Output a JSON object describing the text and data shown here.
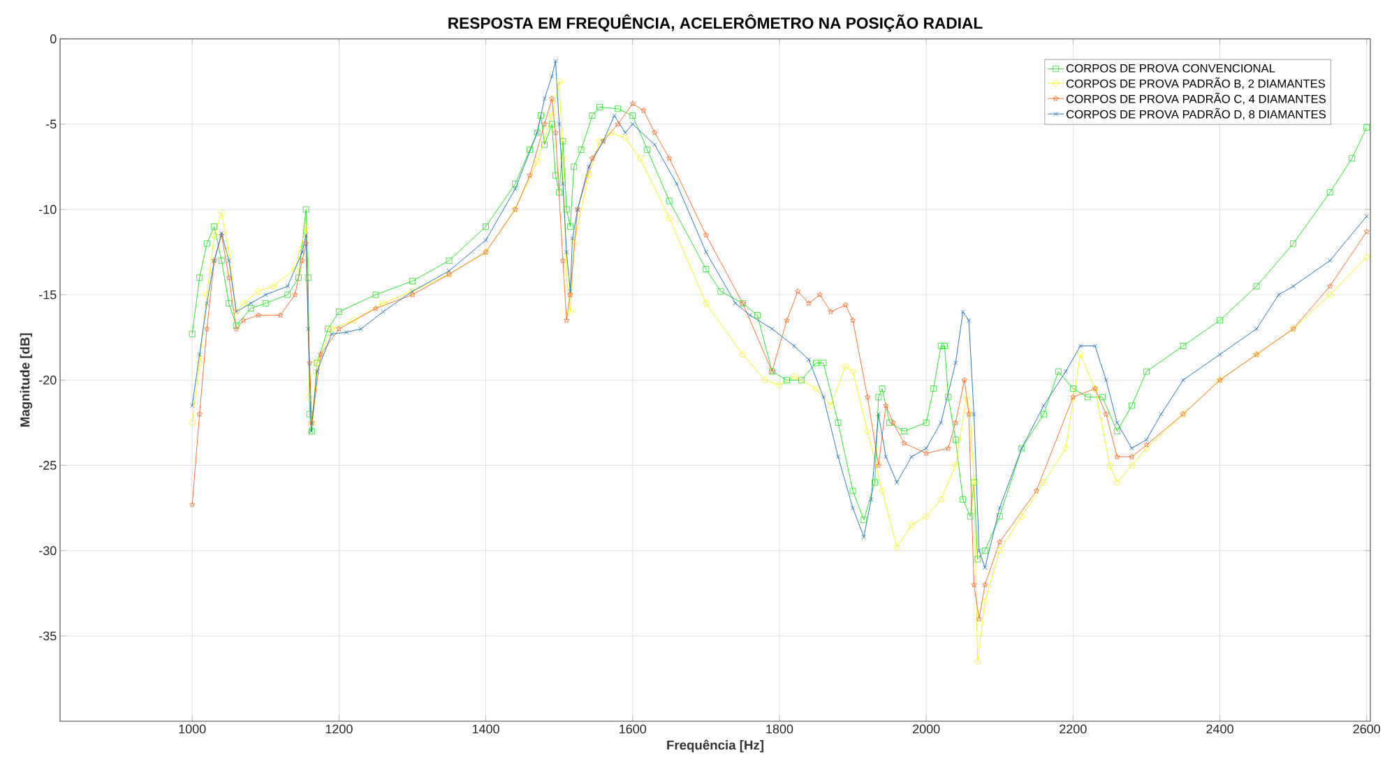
{
  "chart_data": {
    "type": "line",
    "title": "RESPOSTA EM FREQUÊNCIA, ACELERÔMETRO NA POSIÇÃO RADIAL",
    "xlabel": "Frequência [Hz]",
    "ylabel": "Magnitude [dB]",
    "xlim": [
      820,
      2605
    ],
    "ylim": [
      -40,
      0
    ],
    "xticks": [
      1000,
      1200,
      1400,
      1600,
      1800,
      2000,
      2200,
      2400,
      2600
    ],
    "yticks": [
      0,
      -5,
      -10,
      -15,
      -20,
      -25,
      -30,
      -35
    ],
    "grid": true,
    "legend": "top right",
    "line_style": "solid",
    "series": [
      {
        "name": "CORPOS DE PROVA CONVENCIONAL",
        "color": "#22dd22",
        "marker": "square",
        "x": [
          1000,
          1010,
          1020,
          1030,
          1040,
          1050,
          1060,
          1080,
          1100,
          1130,
          1145,
          1155,
          1158,
          1160,
          1163,
          1170,
          1185,
          1200,
          1250,
          1300,
          1350,
          1400,
          1440,
          1460,
          1470,
          1475,
          1480,
          1490,
          1495,
          1500,
          1505,
          1510,
          1515,
          1520,
          1530,
          1545,
          1555,
          1580,
          1600,
          1620,
          1650,
          1700,
          1720,
          1750,
          1770,
          1790,
          1810,
          1830,
          1850,
          1860,
          1880,
          1900,
          1915,
          1930,
          1935,
          1940,
          1950,
          1970,
          2000,
          2010,
          2020,
          2025,
          2030,
          2040,
          2050,
          2060,
          2065,
          2070,
          2080,
          2100,
          2130,
          2160,
          2180,
          2200,
          2220,
          2240,
          2260,
          2280,
          2300,
          2350,
          2400,
          2450,
          2500,
          2550,
          2580,
          2600
        ],
        "values": [
          -17.3,
          -14,
          -12,
          -11,
          -13,
          -15.5,
          -16.8,
          -15.8,
          -15.5,
          -15,
          -14,
          -10,
          -14,
          -22,
          -23,
          -19,
          -17,
          -16,
          -15,
          -14.2,
          -13,
          -11,
          -8.5,
          -6.5,
          -5.5,
          -4.5,
          -6.2,
          -5,
          -8,
          -9,
          -6,
          -10,
          -11,
          -7.5,
          -6.5,
          -4.5,
          -4,
          -4.1,
          -4.5,
          -6.5,
          -9.5,
          -13.5,
          -14.8,
          -15.5,
          -16.2,
          -19.5,
          -20,
          -20,
          -19,
          -19,
          -22.5,
          -26.5,
          -28.2,
          -26,
          -21,
          -20.5,
          -22.5,
          -23,
          -22.5,
          -20.5,
          -18,
          -18,
          -21,
          -23.5,
          -27,
          -28,
          -26,
          -30.5,
          -30,
          -28,
          -24,
          -22,
          -19.5,
          -20.5,
          -21,
          -21,
          -23,
          -21.5,
          -19.5,
          -18,
          -16.5,
          -14.5,
          -12,
          -9,
          -7,
          -5.2
        ]
      },
      {
        "name": "CORPOS DE PROVA PADRÃO B, 2 DIAMANTES",
        "color": "#f2f20f",
        "marker": "circle",
        "x": [
          1000,
          1010,
          1020,
          1030,
          1040,
          1050,
          1060,
          1070,
          1090,
          1110,
          1140,
          1155,
          1160,
          1163,
          1170,
          1190,
          1220,
          1260,
          1300,
          1350,
          1400,
          1440,
          1470,
          1490,
          1500,
          1505,
          1510,
          1515,
          1520,
          1540,
          1555,
          1570,
          1590,
          1610,
          1650,
          1700,
          1750,
          1780,
          1800,
          1820,
          1850,
          1870,
          1890,
          1900,
          1920,
          1940,
          1960,
          1980,
          2000,
          2020,
          2040,
          2055,
          2060,
          2065,
          2070,
          2080,
          2100,
          2130,
          2160,
          2190,
          2210,
          2230,
          2250,
          2260,
          2280,
          2300,
          2350,
          2400,
          2450,
          2500,
          2550,
          2600
        ],
        "values": [
          -22.5,
          -19,
          -15,
          -11.5,
          -10.2,
          -12.5,
          -16,
          -15.5,
          -14.8,
          -14.5,
          -13.5,
          -11,
          -21,
          -22.5,
          -19,
          -17,
          -16.5,
          -15.5,
          -14.8,
          -13.8,
          -12.5,
          -10,
          -7.2,
          -4.5,
          -2.5,
          -7,
          -14,
          -16,
          -12,
          -8,
          -6,
          -5.5,
          -5.8,
          -7,
          -10.5,
          -15.5,
          -18.5,
          -20,
          -20.3,
          -19.8,
          -20.5,
          -21.5,
          -19.2,
          -19.5,
          -23,
          -26.5,
          -29.8,
          -28.5,
          -28,
          -27,
          -25,
          -21,
          -22,
          -26,
          -36.5,
          -33,
          -30,
          -28,
          -26,
          -24,
          -18.5,
          -20.5,
          -25,
          -26,
          -25,
          -24,
          -22,
          -20,
          -18.5,
          -17,
          -15,
          -12.8
        ]
      },
      {
        "name": "CORPOS DE PROVA PADRÃO C, 4 DIAMANTES",
        "color": "#f26a2a",
        "marker": "star",
        "x": [
          1000,
          1010,
          1020,
          1030,
          1040,
          1050,
          1060,
          1070,
          1090,
          1120,
          1140,
          1150,
          1155,
          1160,
          1163,
          1175,
          1200,
          1250,
          1300,
          1350,
          1400,
          1440,
          1460,
          1480,
          1490,
          1495,
          1505,
          1510,
          1515,
          1525,
          1545,
          1560,
          1580,
          1600,
          1615,
          1630,
          1650,
          1700,
          1750,
          1790,
          1810,
          1825,
          1840,
          1855,
          1870,
          1890,
          1900,
          1920,
          1935,
          1945,
          1955,
          1970,
          2000,
          2030,
          2040,
          2052,
          2058,
          2065,
          2072,
          2080,
          2100,
          2150,
          2200,
          2230,
          2245,
          2260,
          2280,
          2300,
          2350,
          2400,
          2450,
          2500,
          2550,
          2600
        ],
        "values": [
          -27.3,
          -22,
          -17,
          -13,
          -11.5,
          -14,
          -17,
          -16.5,
          -16.2,
          -16.2,
          -15,
          -13,
          -12,
          -19,
          -22.5,
          -18.5,
          -17,
          -15.8,
          -15,
          -13.8,
          -12.5,
          -10,
          -8,
          -5,
          -3.5,
          -5.5,
          -13,
          -16.5,
          -15,
          -10,
          -7,
          -6,
          -5,
          -3.8,
          -4.2,
          -5.5,
          -7,
          -11.5,
          -15.5,
          -19.5,
          -16.5,
          -14.8,
          -15.5,
          -15,
          -16,
          -15.6,
          -16.5,
          -21,
          -25,
          -21.5,
          -22.5,
          -23.7,
          -24.3,
          -24,
          -22.5,
          -20,
          -22,
          -32,
          -34,
          -32,
          -29.5,
          -26.5,
          -21,
          -20.5,
          -22,
          -24.5,
          -24.5,
          -23.8,
          -22,
          -20,
          -18.5,
          -17,
          -14.5,
          -11.3
        ]
      },
      {
        "name": "CORPOS DE PROVA PADRÃO D, 8 DIAMANTES",
        "color": "#1f6fb4",
        "marker": "cross",
        "x": [
          1000,
          1010,
          1020,
          1030,
          1040,
          1050,
          1060,
          1080,
          1100,
          1130,
          1150,
          1155,
          1158,
          1162,
          1170,
          1190,
          1210,
          1230,
          1260,
          1300,
          1350,
          1400,
          1440,
          1470,
          1480,
          1490,
          1495,
          1500,
          1505,
          1510,
          1515,
          1518,
          1525,
          1540,
          1560,
          1575,
          1590,
          1600,
          1630,
          1660,
          1700,
          1740,
          1760,
          1790,
          1820,
          1840,
          1860,
          1880,
          1900,
          1915,
          1925,
          1935,
          1945,
          1960,
          1980,
          2000,
          2020,
          2040,
          2050,
          2058,
          2065,
          2072,
          2080,
          2100,
          2130,
          2160,
          2190,
          2210,
          2230,
          2245,
          2260,
          2280,
          2300,
          2320,
          2350,
          2400,
          2450,
          2480,
          2500,
          2550,
          2600
        ],
        "values": [
          -21.5,
          -18.5,
          -15.5,
          -13,
          -11.4,
          -13,
          -16,
          -15.5,
          -15,
          -14.5,
          -12.5,
          -11.5,
          -17,
          -23,
          -19.5,
          -17.3,
          -17.2,
          -17,
          -16,
          -14.8,
          -13.6,
          -11.8,
          -8.8,
          -5.5,
          -3.5,
          -2.2,
          -1.3,
          -5,
          -8.5,
          -12.5,
          -14.8,
          -11.7,
          -10,
          -7.5,
          -6,
          -4.5,
          -5.5,
          -5,
          -6.2,
          -8.5,
          -12.5,
          -15.5,
          -16.2,
          -17,
          -18,
          -18.8,
          -21,
          -24.5,
          -27.5,
          -29.2,
          -27,
          -22,
          -24.5,
          -26,
          -24.5,
          -24,
          -22.5,
          -19,
          -16,
          -16.5,
          -22,
          -30,
          -31,
          -27.5,
          -24,
          -21.5,
          -19.5,
          -18,
          -18,
          -20,
          -22.5,
          -24,
          -23.5,
          -22,
          -20,
          -18.5,
          -17,
          -15,
          -14.5,
          -13,
          -10.4
        ]
      }
    ]
  }
}
